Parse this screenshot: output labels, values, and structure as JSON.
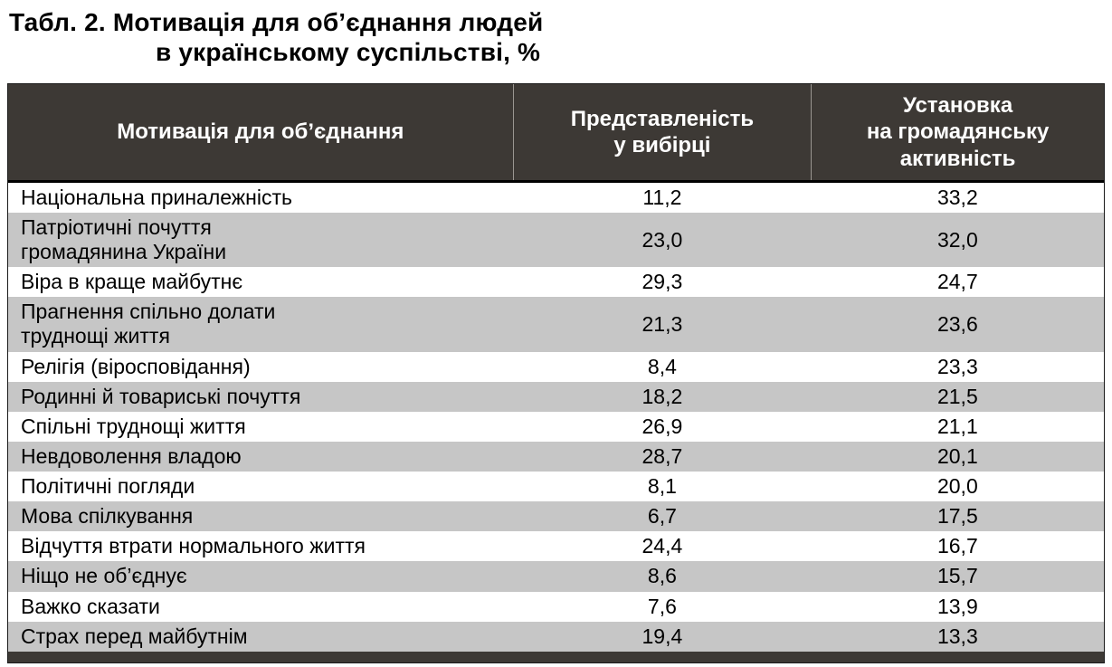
{
  "title": {
    "line1": "Табл. 2. Мотивація для об’єднання людей",
    "line2": "в українському суспільстві, %"
  },
  "colors": {
    "header_bg": "#3d3935",
    "stripe_bg": "#c6c6c6",
    "header_text": "#ffffff",
    "body_text": "#000000"
  },
  "table": {
    "headers": [
      "Мотивація для об’єднання",
      "Представленість\nу вибірці",
      "Установка\nна громадянську\nактивність"
    ],
    "rows": [
      {
        "label": "Національна приналежність",
        "sample": "11,2",
        "civic": "33,2"
      },
      {
        "label": "Патріотичні почуття\nгромадянина України",
        "sample": "23,0",
        "civic": "32,0"
      },
      {
        "label": "Віра в краще майбутнє",
        "sample": "29,3",
        "civic": "24,7"
      },
      {
        "label": "Прагнення спільно долати\nтруднощі життя",
        "sample": "21,3",
        "civic": "23,6"
      },
      {
        "label": "Релігія (віросповідання)",
        "sample": "8,4",
        "civic": "23,3"
      },
      {
        "label": "Родинні й товариські почуття",
        "sample": "18,2",
        "civic": "21,5"
      },
      {
        "label": "Спільні труднощі життя",
        "sample": "26,9",
        "civic": "21,1"
      },
      {
        "label": "Невдоволення владою",
        "sample": "28,7",
        "civic": "20,1"
      },
      {
        "label": "Політичні погляди",
        "sample": "8,1",
        "civic": "20,0"
      },
      {
        "label": "Мова спілкування",
        "sample": "6,7",
        "civic": "17,5"
      },
      {
        "label": "Відчуття втрати нормального життя",
        "sample": "24,4",
        "civic": "16,7"
      },
      {
        "label": "Ніщо не об’єднує",
        "sample": "8,6",
        "civic": "15,7"
      },
      {
        "label": "Важко сказати",
        "sample": "7,6",
        "civic": "13,9"
      },
      {
        "label": "Страх перед майбутнім",
        "sample": "19,4",
        "civic": "13,3"
      }
    ]
  },
  "chart_data": {
    "type": "table",
    "title": "Табл. 2. Мотивація для об’єднання людей в українському суспільстві, %",
    "columns": [
      "Мотивація для об’єднання",
      "Представленість у вибірці",
      "Установка на громадянську активність"
    ],
    "series": [
      {
        "name": "Представленість у вибірці",
        "values": [
          11.2,
          23.0,
          29.3,
          21.3,
          8.4,
          18.2,
          26.9,
          28.7,
          8.1,
          6.7,
          24.4,
          8.6,
          7.6,
          19.4
        ]
      },
      {
        "name": "Установка на громадянську активність",
        "values": [
          33.2,
          32.0,
          24.7,
          23.6,
          23.3,
          21.5,
          21.1,
          20.1,
          20.0,
          17.5,
          16.7,
          15.7,
          13.9,
          13.3
        ]
      }
    ],
    "categories": [
      "Національна приналежність",
      "Патріотичні почуття громадянина України",
      "Віра в краще майбутнє",
      "Прагнення спільно долати труднощі життя",
      "Релігія (віросповідання)",
      "Родинні й товариські почуття",
      "Спільні труднощі життя",
      "Невдоволення владою",
      "Політичні погляди",
      "Мова спілкування",
      "Відчуття втрати нормального життя",
      "Ніщо не об’єднує",
      "Важко сказати",
      "Страх перед майбутнім"
    ]
  }
}
